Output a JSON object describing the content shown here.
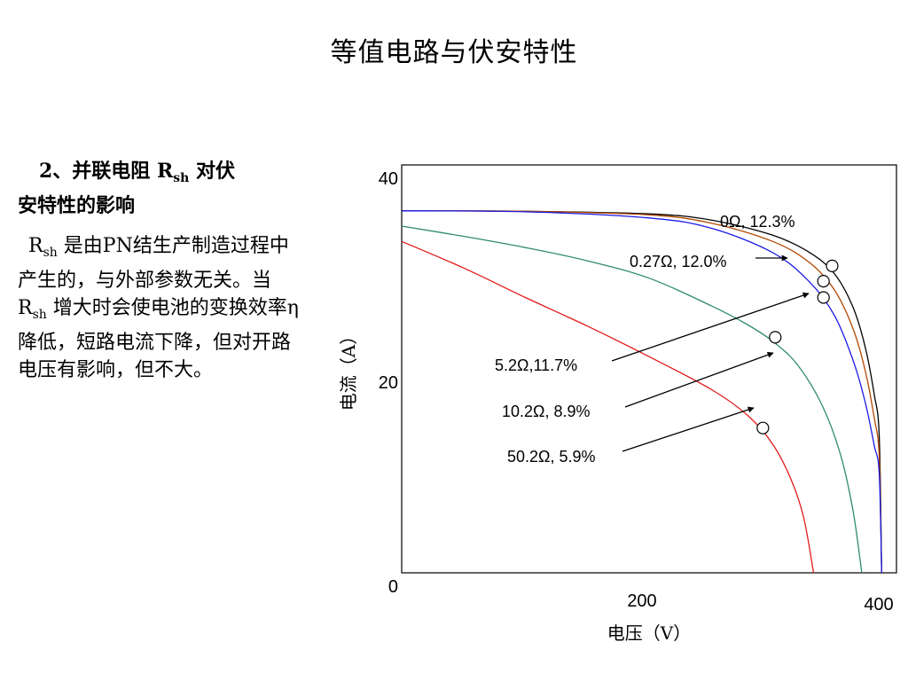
{
  "title": "等值电路与伏安特性",
  "section": {
    "heading_prefix": "2、并联电阻",
    "heading_symbol": "R",
    "heading_sub": "sh",
    "heading_suffix": "对伏",
    "heading_line2": "安特性的影响",
    "body_symbol": "R",
    "body_sub": "sh",
    "body_part1": "是由PN结生产制造过程中产生的，与外部参数无关。当",
    "body_symbol2": "R",
    "body_sub2": "sh",
    "body_part2": "增大时会使电池的变换效率η降低，短路电流下降，但对开路电压有影响，但不大。"
  },
  "colors": {
    "black": "#000000",
    "brown": "#b34700",
    "blue": "#1a1ae6",
    "green": "#2e8b6e",
    "red": "#e01b1b"
  },
  "chart_data": {
    "type": "line",
    "title": "",
    "xlabel": "电压（V）",
    "ylabel": "电流（A）",
    "xlim": [
      0,
      400
    ],
    "ylim": [
      0,
      40
    ],
    "xticks": [
      "200",
      "400"
    ],
    "yticks": [
      "0",
      "20",
      "40"
    ],
    "series": [
      {
        "label": "0Ω, 12.3%",
        "color": "#000000",
        "isc": 35.5,
        "voc": 388,
        "mpp": [
          348,
          30.1
        ],
        "x": [
          0,
          100,
          200,
          250,
          300,
          330,
          350,
          365,
          375,
          382,
          386,
          388
        ],
        "y": [
          35.5,
          35.45,
          35.2,
          34.6,
          33.1,
          31.4,
          29.3,
          26.0,
          22.0,
          17.5,
          13.5,
          0
        ]
      },
      {
        "label": "0.27Ω, 12.0%",
        "color": "#b34700",
        "isc": 35.5,
        "voc": 388,
        "mpp": [
          341,
          28.6
        ],
        "x": [
          0,
          100,
          200,
          250,
          300,
          330,
          350,
          365,
          375,
          382,
          386,
          388
        ],
        "y": [
          35.5,
          35.45,
          35.1,
          34.3,
          32.5,
          30.4,
          27.7,
          23.9,
          19.7,
          15.2,
          11.5,
          0
        ]
      },
      {
        "label": "5.2Ω,11.7%",
        "color": "#1a1ae6",
        "isc": 35.5,
        "voc": 388,
        "mpp": [
          341,
          27.0
        ],
        "x": [
          0,
          100,
          200,
          250,
          300,
          330,
          350,
          365,
          375,
          382,
          386,
          388
        ],
        "y": [
          35.5,
          35.4,
          34.8,
          33.8,
          31.4,
          28.5,
          25.2,
          20.8,
          16.6,
          12.5,
          9.8,
          0
        ]
      },
      {
        "label": "10.2Ω, 8.9%",
        "color": "#2e8b6e",
        "isc": 34.0,
        "voc": 372,
        "mpp": [
          302,
          23.1
        ],
        "x": [
          0,
          50,
          100,
          150,
          200,
          250,
          280,
          300,
          320,
          340,
          355,
          365,
          372
        ],
        "y": [
          34.0,
          33.0,
          31.9,
          30.6,
          28.9,
          26.2,
          24.3,
          22.7,
          20.4,
          16.4,
          11.5,
          6.0,
          0
        ]
      },
      {
        "label": "50.2Ω, 5.9%",
        "color": "#e01b1b",
        "isc": 32.5,
        "voc": 333,
        "mpp": [
          292,
          14.2
        ],
        "x": [
          0,
          50,
          100,
          150,
          200,
          250,
          280,
          300,
          315,
          325,
          333
        ],
        "y": [
          32.5,
          29.9,
          27.0,
          24.2,
          21.2,
          18.0,
          15.4,
          12.6,
          9.1,
          5.4,
          0
        ]
      }
    ]
  }
}
